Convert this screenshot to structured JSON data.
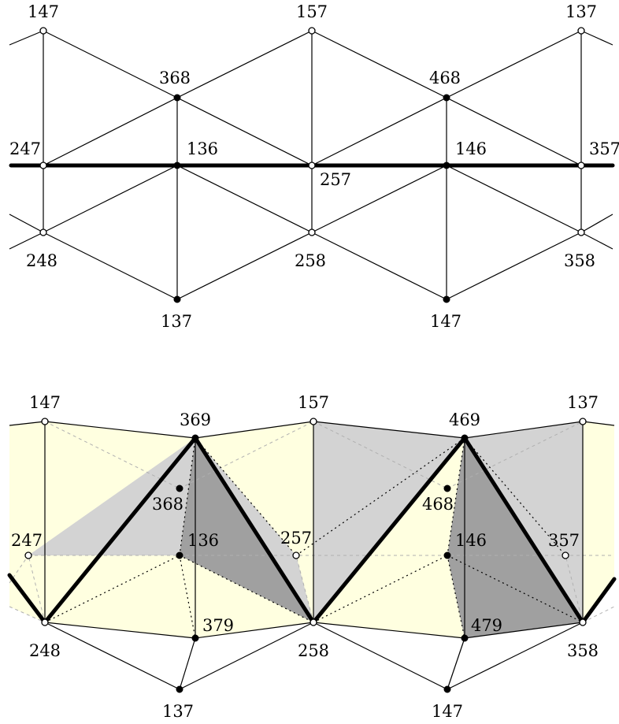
{
  "top_diagram": {
    "labels": {
      "v147": "147",
      "v157": "157",
      "v137r": "137",
      "v368": "368",
      "v468": "468",
      "v247": "247",
      "v136": "136",
      "v257": "257",
      "v146": "146",
      "v357": "357",
      "v248": "248",
      "v258": "258",
      "v358": "358",
      "v137b": "137",
      "v147b": "147"
    }
  },
  "bottom_diagram": {
    "labels": {
      "v147": "147",
      "v369": "369",
      "v157": "157",
      "v469": "469",
      "v137r": "137",
      "v368": "368",
      "v468": "468",
      "v247": "247",
      "v136": "136",
      "v257": "257",
      "v146": "146",
      "v357": "357",
      "v379": "379",
      "v479": "479",
      "v248": "248",
      "v258": "258",
      "v358": "358",
      "v137b": "137",
      "v147b": "147"
    },
    "colors": {
      "yellow_face": "#ffffe0",
      "light_grey_face": "#d3d3d3",
      "dark_grey_face": "#a0a0a0"
    }
  }
}
